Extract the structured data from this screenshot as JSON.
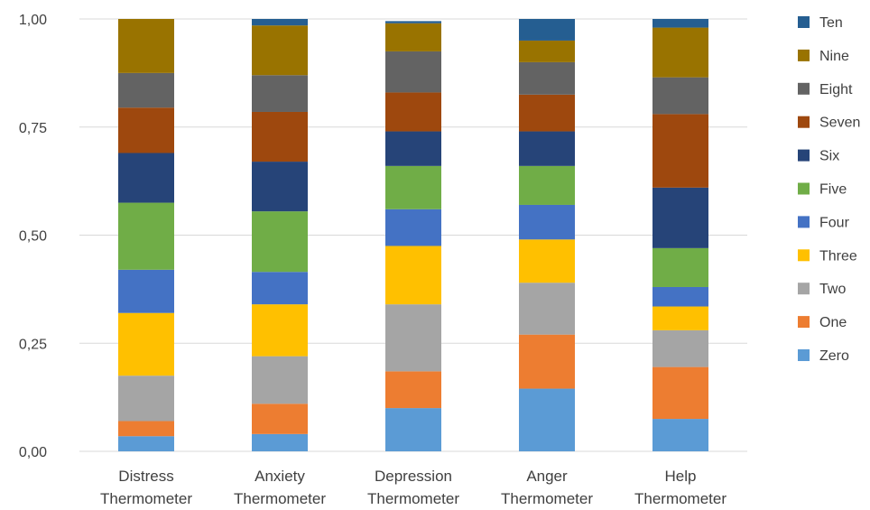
{
  "chart_data": {
    "type": "bar",
    "stacked": true,
    "percent": true,
    "categories": [
      [
        "Distress",
        "Thermometer"
      ],
      [
        "Anxiety",
        "Thermometer"
      ],
      [
        "Depression",
        "Thermometer"
      ],
      [
        "Anger",
        "Thermometer"
      ],
      [
        "Help",
        "Thermometer"
      ]
    ],
    "ylim": [
      0,
      1
    ],
    "yticks": [
      "0,00",
      "0,25",
      "0,50",
      "0,75",
      "1,00"
    ],
    "grid": true,
    "legend_position": "right",
    "series": [
      {
        "name": "Zero",
        "color": "#5b9bd5",
        "values": [
          0.035,
          0.04,
          0.1,
          0.145,
          0.075
        ]
      },
      {
        "name": "One",
        "color": "#ed7d31",
        "values": [
          0.035,
          0.07,
          0.085,
          0.125,
          0.12
        ]
      },
      {
        "name": "Two",
        "color": "#a5a5a5",
        "values": [
          0.105,
          0.11,
          0.155,
          0.12,
          0.085
        ]
      },
      {
        "name": "Three",
        "color": "#ffc000",
        "values": [
          0.145,
          0.12,
          0.135,
          0.1,
          0.055
        ]
      },
      {
        "name": "Four",
        "color": "#4472c4",
        "values": [
          0.1,
          0.075,
          0.085,
          0.08,
          0.045
        ]
      },
      {
        "name": "Five",
        "color": "#70ad47",
        "values": [
          0.155,
          0.14,
          0.1,
          0.09,
          0.09
        ]
      },
      {
        "name": "Six",
        "color": "#264478",
        "values": [
          0.115,
          0.115,
          0.08,
          0.08,
          0.14
        ]
      },
      {
        "name": "Seven",
        "color": "#9e480e",
        "values": [
          0.105,
          0.115,
          0.09,
          0.085,
          0.17
        ]
      },
      {
        "name": "Eight",
        "color": "#636363",
        "values": [
          0.08,
          0.085,
          0.095,
          0.075,
          0.085
        ]
      },
      {
        "name": "Nine",
        "color": "#997300",
        "values": [
          0.125,
          0.115,
          0.065,
          0.05,
          0.115
        ]
      },
      {
        "name": "Ten",
        "color": "#255e91",
        "values": [
          0.0,
          0.015,
          0.005,
          0.05,
          0.02
        ]
      }
    ]
  }
}
